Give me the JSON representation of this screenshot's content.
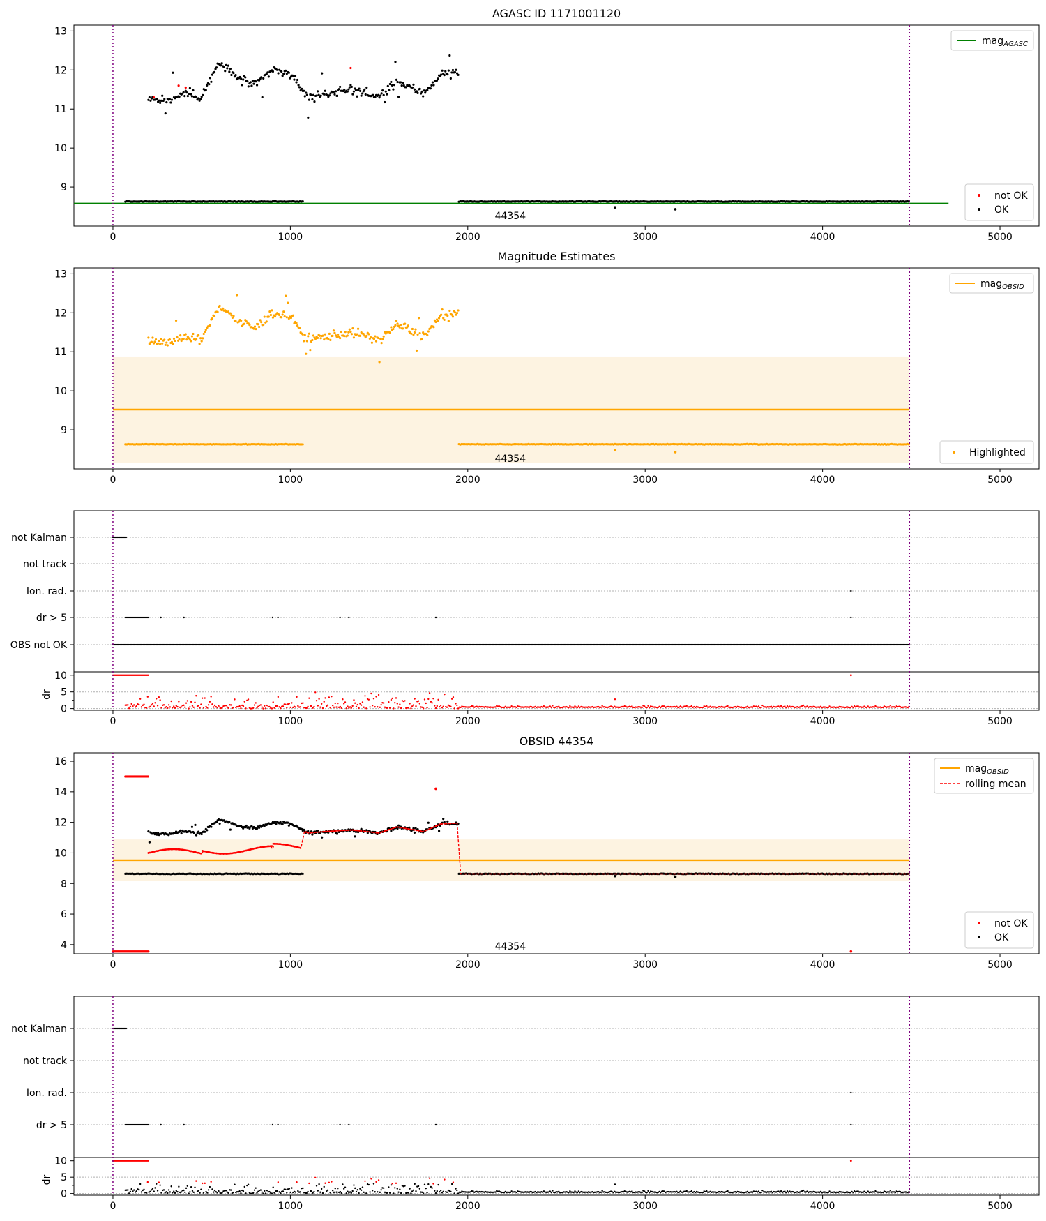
{
  "chart_data": [
    {
      "type": "scatter",
      "title": "AGASC ID 1171001120",
      "x_range": [
        -220,
        5220
      ],
      "y_range": [
        8.0,
        13.15
      ],
      "x_ticks": [
        0,
        1000,
        2000,
        3000,
        4000,
        5000
      ],
      "y_ticks": [
        9,
        10,
        11,
        12,
        13
      ],
      "mag_agasc": 8.58,
      "vlines": [
        0,
        4490
      ],
      "annotation": {
        "text": "44354",
        "x": 2240,
        "y": 8.27
      },
      "legend_line": {
        "label": "mag",
        "sub": "AGASC",
        "color": "#008000"
      },
      "legend_points": [
        {
          "label": "not OK",
          "color": "#ff0000"
        },
        {
          "label": "OK",
          "color": "#000000"
        }
      ],
      "series": {
        "base": {
          "x_range": [
            [
              70,
              1070
            ],
            [
              1950,
              4490
            ]
          ],
          "level": 8.63,
          "outliers": [
            {
              "x": 2830,
              "y": 8.48
            },
            {
              "x": 3170,
              "y": 8.43
            }
          ]
        },
        "upper": {
          "x_range": [
            200,
            1950
          ],
          "pattern": [
            [
              200,
              11.3
            ],
            [
              300,
              11.2
            ],
            [
              400,
              11.4
            ],
            [
              500,
              11.3
            ],
            [
              600,
              12.2
            ],
            [
              700,
              11.8
            ],
            [
              800,
              11.6
            ],
            [
              900,
              12.0
            ],
            [
              1000,
              11.9
            ],
            [
              1100,
              11.3
            ],
            [
              1200,
              11.4
            ],
            [
              1350,
              11.5
            ],
            [
              1500,
              11.3
            ],
            [
              1600,
              11.7
            ],
            [
              1750,
              11.4
            ],
            [
              1850,
              11.9
            ],
            [
              1950,
              11.95
            ]
          ]
        }
      }
    },
    {
      "type": "scatter",
      "title": "Magnitude Estimates",
      "x_range": [
        -220,
        5220
      ],
      "y_range": [
        8.0,
        13.15
      ],
      "x_ticks": [
        0,
        1000,
        2000,
        3000,
        4000,
        5000
      ],
      "y_ticks": [
        9,
        10,
        11,
        12,
        13
      ],
      "mag_obsid": 9.52,
      "band": [
        8.15,
        10.88
      ],
      "vlines": [
        0,
        4490
      ],
      "annotation": {
        "text": "44354",
        "x": 2240,
        "y": 8.27
      },
      "legend_line": {
        "label": "mag",
        "sub": "OBSID",
        "color": "#ffa500"
      },
      "legend_points": [
        {
          "label": "Highlighted",
          "color": "#ffa500"
        }
      ]
    },
    {
      "type": "scatter",
      "title": "",
      "x_range": [
        -220,
        5220
      ],
      "y_categories": [
        "not Kalman",
        "not track",
        "Ion. rad.",
        "dr > 5",
        "OBS not OK"
      ],
      "flags": {
        "not Kalman": [
          [
            0,
            75
          ]
        ],
        "dr > 5": [
          [
            70,
            200
          ]
        ],
        "dr > 5 points": [
          270,
          400,
          900,
          930,
          1280,
          1330,
          1820,
          4160
        ],
        "Ion. rad. points": [
          4160
        ],
        "OBS not OK": [
          [
            0,
            4490
          ]
        ]
      },
      "dr_panel": {
        "ylabel": "dr",
        "y_ticks": [
          0,
          5,
          10
        ],
        "y_range": [
          -0.5,
          11
        ],
        "cap": 10
      }
    },
    {
      "type": "line",
      "title": "OBSID 44354",
      "x_range": [
        -220,
        5220
      ],
      "y_range": [
        3.4,
        16.55
      ],
      "x_ticks": [
        0,
        1000,
        2000,
        3000,
        4000,
        5000
      ],
      "y_ticks": [
        4,
        6,
        8,
        10,
        12,
        14,
        16
      ],
      "mag_obsid": 9.52,
      "band": [
        8.15,
        10.88
      ],
      "annotation": {
        "text": "44354",
        "x": 2240,
        "y": 3.9
      },
      "legend_lines": [
        {
          "label": "mag",
          "sub": "OBSID",
          "color": "#ffa500",
          "style": "solid"
        },
        {
          "label": "rolling mean",
          "sub": "",
          "color": "#ff0000",
          "style": "dashed"
        }
      ],
      "legend_points": [
        {
          "label": "not OK",
          "color": "#ff0000"
        },
        {
          "label": "OK",
          "color": "#000000"
        }
      ],
      "red_top": {
        "x_range": [
          70,
          200
        ],
        "y": 15.0
      },
      "red_bottom": {
        "x_range": [
          0,
          200
        ],
        "y": 3.55
      },
      "red_extra": [
        {
          "x": 1820,
          "y": 14.2
        },
        {
          "x": 4160,
          "y": 3.55
        }
      ]
    },
    {
      "type": "scatter",
      "title": "",
      "x_range": [
        -220,
        5220
      ],
      "y_categories": [
        "not Kalman",
        "not track",
        "Ion. rad.",
        "dr > 5"
      ],
      "dr_panel": {
        "ylabel": "dr",
        "y_ticks": [
          0,
          5,
          10
        ],
        "y_range": [
          -0.5,
          11
        ],
        "cap": 10
      }
    }
  ],
  "colors": {
    "black": "#000000",
    "red": "#ff0000",
    "orange": "#ffa500",
    "green": "#008000",
    "band": "#fdf3e1",
    "vline": "#800080"
  }
}
